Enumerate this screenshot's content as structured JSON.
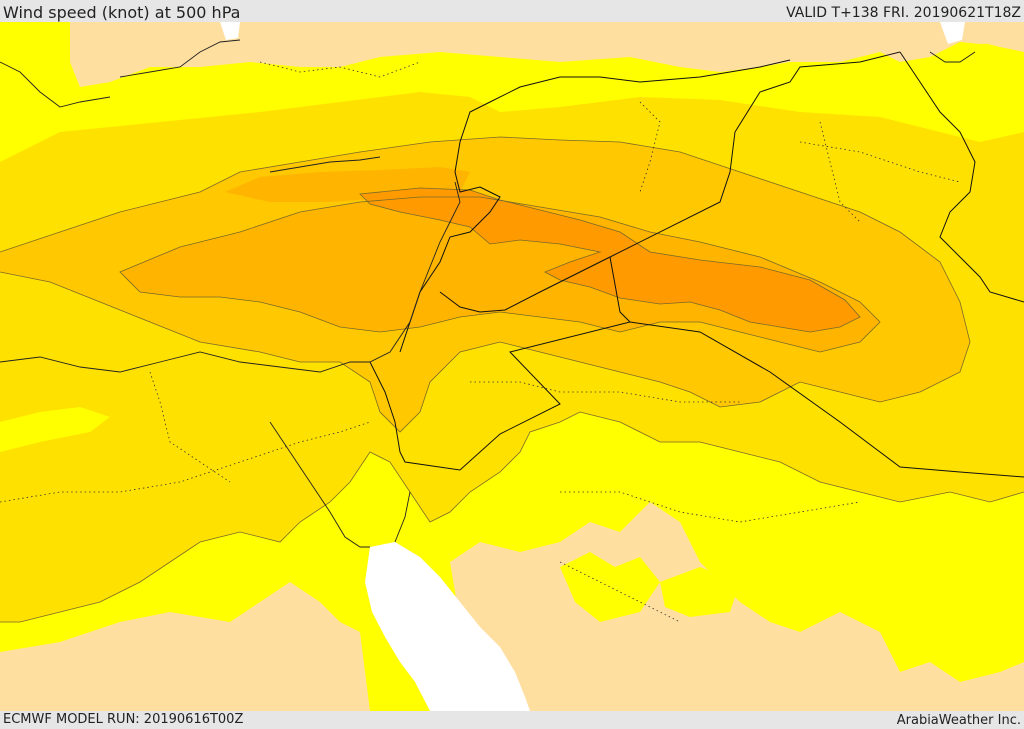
{
  "header": {
    "title": "Wind speed (knot) at 500 hPa",
    "valid": "VALID T+138 FRI. 20190621T18Z"
  },
  "footer": {
    "model_run": "ECMWF MODEL RUN: 20190616T00Z",
    "credit": "ArabiaWeather Inc."
  },
  "colors": {
    "background_band": "#e6e6e6",
    "wind_low": "#ffdf9f",
    "wind_yellow": "#ffff00",
    "wind_gold": "#ffe100",
    "wind_amber": "#ffc800",
    "wind_orange": "#ffae00",
    "wind_dark_orange": "#ff9a00",
    "water_white": "#ffffff",
    "borders": "#111111"
  }
}
